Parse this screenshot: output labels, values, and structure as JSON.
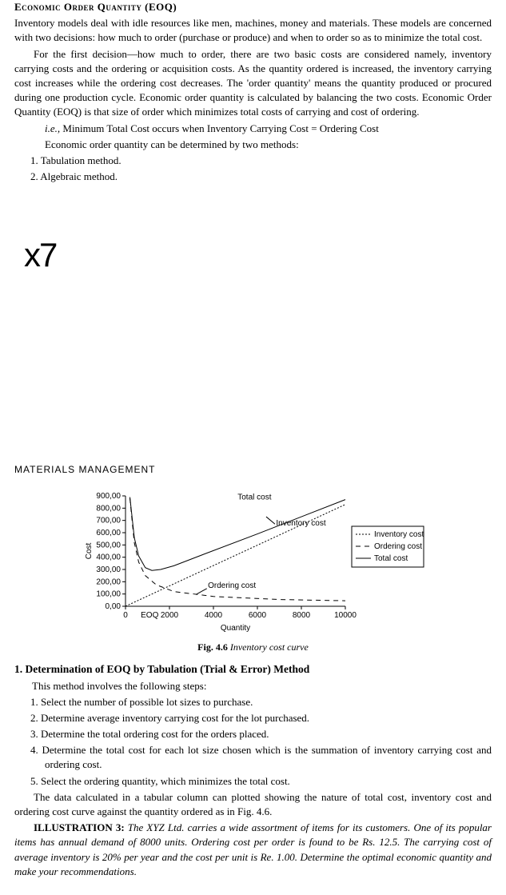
{
  "title": "Economic Order Quantity (EOQ)",
  "p1": "Inventory models deal with idle resources like men, machines, money and materials. These models are concerned with two decisions: how much to order (purchase or produce) and when to order so as to minimize the total cost.",
  "p2": "For the first decision—how much to order, there are two basic costs are considered namely, inventory carrying costs and the ordering or acquisition costs. As the quantity ordered is increased, the inventory carrying cost increases while the ordering cost decreases. The 'order quantity' means the quantity produced or procured during one production cycle. Economic order quantity is calculated by balancing the two costs. Economic Order Quantity (EOQ) is that size of order which minimizes total costs of carrying and cost of ordering.",
  "ie_prefix": "i.e.,",
  "ie_text": " Minimum Total Cost occurs when Inventory Carrying Cost = Ordering Cost",
  "p3": "Economic order quantity can be determined by two methods:",
  "m1": "1.  Tabulation method.",
  "m2": "2.  Algebraic method.",
  "x7": "x7",
  "section": "MATERIALS  MANAGEMENT",
  "chart": {
    "type": "line",
    "ylabel": "Cost",
    "xlabel": "Quantity",
    "y_ticks": [
      "0,00",
      "100,00",
      "200,00",
      "300,00",
      "400,00",
      "500,00",
      "600,00",
      "700,00",
      "800,00",
      "900,00"
    ],
    "x_ticks": [
      "0",
      "2000",
      "4000",
      "6000",
      "8000",
      "10000"
    ],
    "eoq_label": "EOQ",
    "annotations": {
      "total": "Total cost",
      "inventory": "Inventory cost",
      "ordering": "Ordering cost"
    },
    "legend": [
      "Inventory cost",
      "Ordering cost",
      "Total cost"
    ],
    "legend_styles": [
      "dotted",
      "dashed",
      "solid"
    ],
    "xlim": [
      0,
      10000
    ],
    "ylim": [
      0,
      900
    ],
    "series": {
      "inventory": {
        "x": [
          0,
          10000
        ],
        "y": [
          0,
          830
        ],
        "stroke": "#000",
        "dash": "2,2"
      },
      "ordering": {
        "x": [
          200,
          400,
          600,
          900,
          1400,
          2200,
          4000,
          7000,
          10000
        ],
        "y": [
          880,
          520,
          360,
          250,
          175,
          120,
          80,
          55,
          45
        ],
        "stroke": "#000",
        "dash": "6,5"
      },
      "total": {
        "x": [
          200,
          400,
          600,
          900,
          1200,
          1600,
          2200,
          3500,
          6000,
          10000
        ],
        "y": [
          890,
          560,
          410,
          315,
          292,
          300,
          330,
          420,
          590,
          870
        ],
        "stroke": "#000",
        "dash": ""
      }
    },
    "colors": {
      "axis": "#000",
      "background": "#ffffff"
    },
    "font_size": 10
  },
  "fig_no": "Fig. 4.6",
  "fig_title": " Inventory cost curve",
  "subhead": "1. Determination of EOQ by Tabulation (Trial & Error) Method",
  "intro_steps": "This method involves the following steps:",
  "s1": "1.  Select the number of possible lot sizes to purchase.",
  "s2": "2.  Determine average inventory carrying cost for the lot purchased.",
  "s3": "3.  Determine the total ordering cost for the orders placed.",
  "s4": "4.  Determine the total cost for each lot size chosen which is the summation of inventory carrying cost and ordering cost.",
  "s5": "5.  Select the ordering quantity, which minimizes the total cost.",
  "p4": "The data calculated in a tabular column can plotted showing the nature of total cost, inventory cost and ordering cost curve against the quantity ordered as in Fig. 4.6.",
  "illus_label": "ILLUSTRATION 3:",
  "illus_text": " The XYZ Ltd. carries a wide assortment of items for its customers. One of its popular items has annual demand of 8000 units. Ordering cost per order is found to be Rs. 12.5. The carrying cost of average inventory is 20% per year and the cost per unit is Re. 1.00. Determine the optimal economic quantity and make your recommendations."
}
